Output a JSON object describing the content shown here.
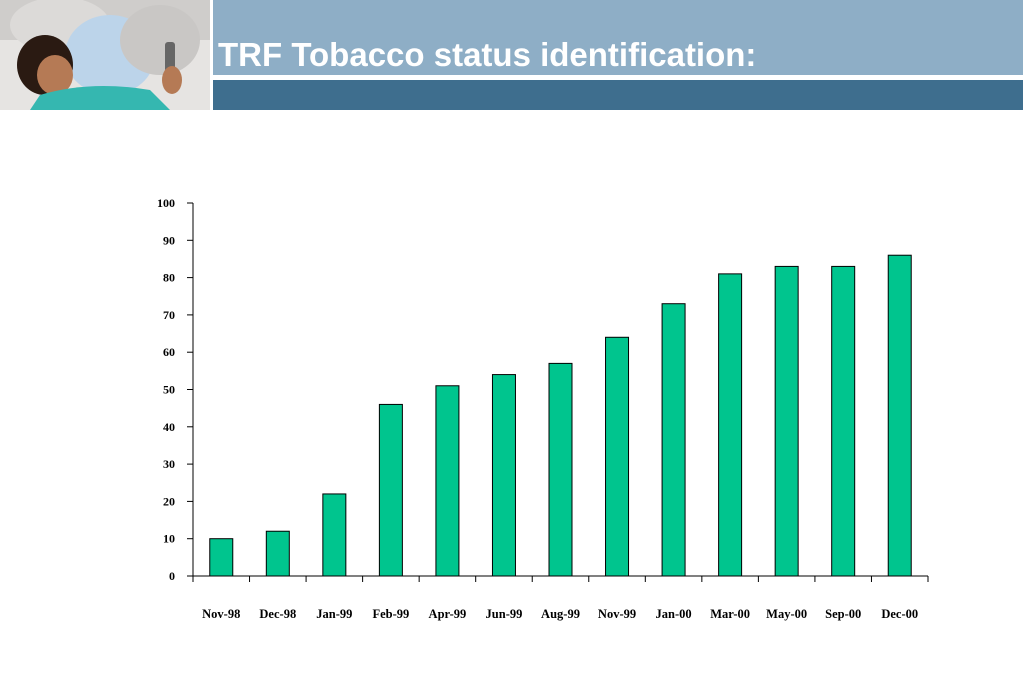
{
  "title": "TRF Tobacco status identification:",
  "colors": {
    "header_light": "#8eaec6",
    "header_dark": "#3e6e8e",
    "bar_fill": "#00c58e"
  },
  "chart_data": {
    "type": "bar",
    "categories": [
      "Nov-98",
      "Dec-98",
      "Jan-99",
      "Feb-99",
      "Apr-99",
      "Jun-99",
      "Aug-99",
      "Nov-99",
      "Jan-00",
      "Mar-00",
      "May-00",
      "Sep-00",
      "Dec-00"
    ],
    "values": [
      10,
      12,
      22,
      46,
      51,
      54,
      57,
      64,
      73,
      81,
      83,
      83,
      86
    ],
    "ylim": [
      0,
      100
    ],
    "yticks": [
      0,
      10,
      20,
      30,
      40,
      50,
      60,
      70,
      80,
      90,
      100
    ],
    "xlabel": "",
    "ylabel": "",
    "grid": false,
    "legend": "none"
  }
}
